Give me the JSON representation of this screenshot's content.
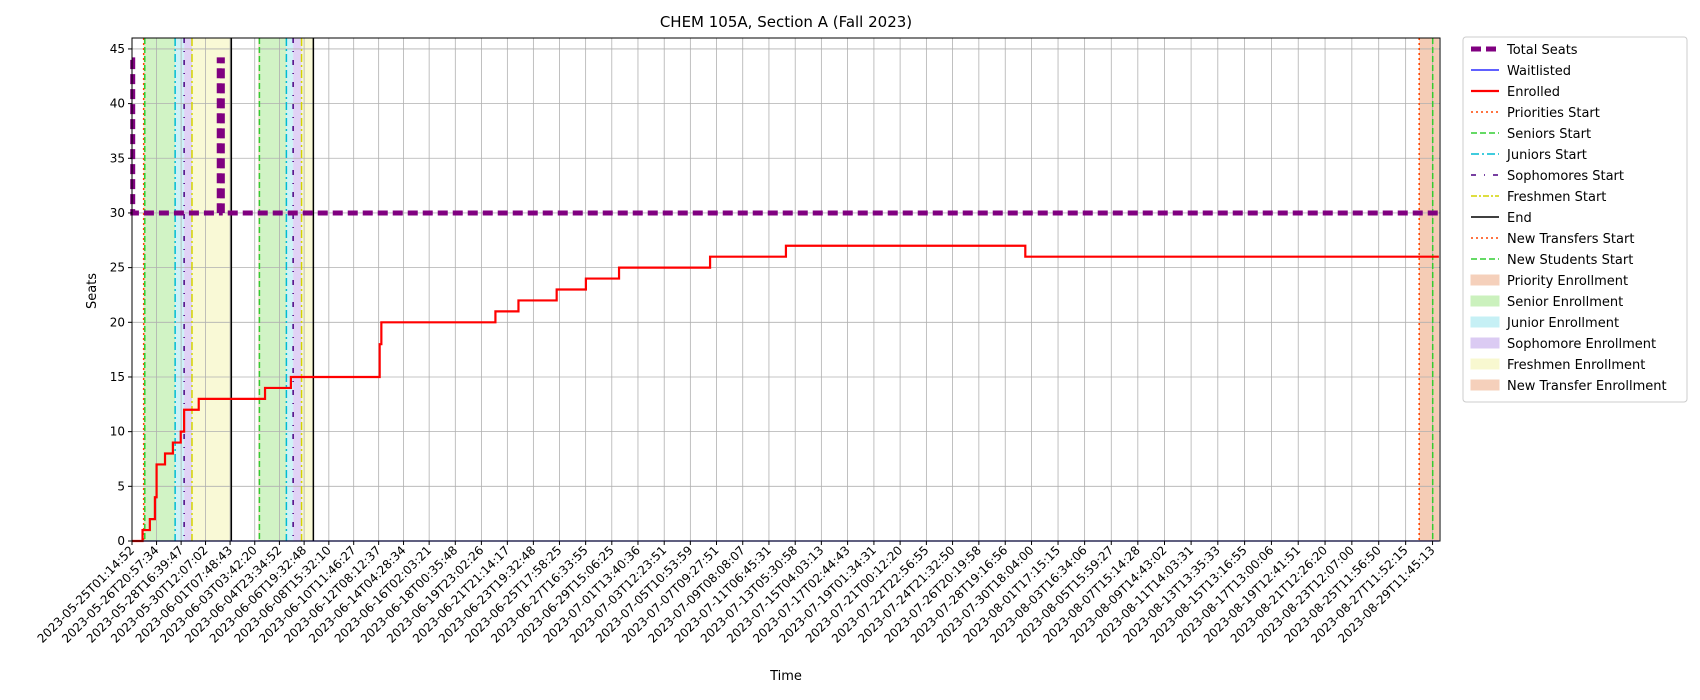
{
  "chart_data": {
    "type": "line",
    "title": "CHEM 105A, Section A (Fall 2023)",
    "xlabel": "Time",
    "ylabel": "Seats",
    "x_is_datetime": true,
    "xlim": [
      "2023-05-25T01:14:52",
      "2023-08-30T01:00:00"
    ],
    "ylim": [
      0,
      46
    ],
    "yticks": [
      0,
      5,
      10,
      15,
      20,
      25,
      30,
      35,
      40,
      45
    ],
    "xticks": [
      "2023-05-25T01:14:52",
      "2023-05-26T20:57:34",
      "2023-05-28T16:39:47",
      "2023-05-30T12:07:02",
      "2023-06-01T07:48:43",
      "2023-06-03T03:42:20",
      "2023-06-04T23:34:52",
      "2023-06-06T19:32:48",
      "2023-06-08T15:32:10",
      "2023-06-10T11:46:27",
      "2023-06-12T08:12:37",
      "2023-06-14T04:28:34",
      "2023-06-16T02:03:21",
      "2023-06-18T00:35:48",
      "2023-06-19T23:02:26",
      "2023-06-21T21:14:17",
      "2023-06-23T19:32:48",
      "2023-06-25T17:58:25",
      "2023-06-27T16:33:55",
      "2023-06-29T15:06:25",
      "2023-07-01T13:40:36",
      "2023-07-03T12:23:51",
      "2023-07-05T10:53:59",
      "2023-07-07T09:27:51",
      "2023-07-09T08:08:07",
      "2023-07-11T06:45:31",
      "2023-07-13T05:30:58",
      "2023-07-15T04:03:13",
      "2023-07-17T02:44:43",
      "2023-07-19T01:34:31",
      "2023-07-21T00:12:20",
      "2023-07-22T22:56:55",
      "2023-07-24T21:32:50",
      "2023-07-26T20:19:58",
      "2023-07-28T19:16:56",
      "2023-07-30T18:04:00",
      "2023-08-01T17:15:15",
      "2023-08-03T16:34:06",
      "2023-08-05T15:59:27",
      "2023-08-07T15:14:28",
      "2023-08-09T14:43:02",
      "2023-08-11T14:03:31",
      "2023-08-13T13:35:33",
      "2023-08-15T13:16:55",
      "2023-08-17T13:00:06",
      "2023-08-19T12:41:51",
      "2023-08-21T12:26:20",
      "2023-08-23T12:07:00",
      "2023-08-25T11:56:50",
      "2023-08-27T11:52:15",
      "2023-08-29T11:45:13"
    ],
    "grid": true,
    "legend_position": "outside-right",
    "series": [
      {
        "name": "Total Seats",
        "style": "dashed-thick",
        "color": "#800080",
        "points": [
          [
            "2023-05-25T01:14:52",
            44
          ],
          [
            "2023-05-25T02:30:00",
            44
          ],
          [
            "2023-05-25T02:30:00",
            30
          ],
          [
            "2023-05-31T12:30:00",
            30
          ],
          [
            "2023-05-31T12:30:00",
            44
          ],
          [
            "2023-05-31T18:00:00",
            44
          ],
          [
            "2023-05-31T18:00:00",
            30
          ],
          [
            "2023-08-29T23:00:00",
            30
          ]
        ]
      },
      {
        "name": "Waitlisted",
        "style": "solid",
        "color": "#0000ff",
        "points": [
          [
            "2023-05-25T01:14:52",
            0
          ],
          [
            "2023-08-29T23:00:00",
            0
          ]
        ]
      },
      {
        "name": "Enrolled",
        "style": "step",
        "color": "#ff0000",
        "points": [
          [
            "2023-05-25T01:14:52",
            0
          ],
          [
            "2023-05-25T20:00:00",
            1
          ],
          [
            "2023-05-26T09:00:00",
            2
          ],
          [
            "2023-05-26T18:00:00",
            4
          ],
          [
            "2023-05-26T21:00:00",
            7
          ],
          [
            "2023-05-27T04:00:00",
            7
          ],
          [
            "2023-05-27T12:00:00",
            8
          ],
          [
            "2023-05-28T02:00:00",
            9
          ],
          [
            "2023-05-28T16:00:00",
            10
          ],
          [
            "2023-05-28T22:00:00",
            12
          ],
          [
            "2023-05-29T12:00:00",
            12
          ],
          [
            "2023-05-30T00:00:00",
            13
          ],
          [
            "2023-06-03T22:00:00",
            14
          ],
          [
            "2023-06-05T20:00:00",
            15
          ],
          [
            "2023-06-12T10:00:00",
            18
          ],
          [
            "2023-06-12T13:00:00",
            20
          ],
          [
            "2023-06-21T00:00:00",
            21
          ],
          [
            "2023-06-22T17:00:00",
            22
          ],
          [
            "2023-06-25T13:00:00",
            23
          ],
          [
            "2023-06-27T17:00:00",
            24
          ],
          [
            "2023-06-30T04:00:00",
            25
          ],
          [
            "2023-07-06T22:00:00",
            26
          ],
          [
            "2023-07-12T13:00:00",
            27
          ],
          [
            "2023-07-30T07:00:00",
            26
          ],
          [
            "2023-08-29T23:00:00",
            26
          ]
        ]
      }
    ],
    "vertical_markers": [
      {
        "name": "Priorities Start",
        "color": "#ff4500",
        "style": "dotted",
        "x": [
          "2023-05-25T22:00:00",
          "2023-08-28T12:00:00"
        ]
      },
      {
        "name": "Seniors Start",
        "color": "#32cd32",
        "style": "dashed",
        "x": [
          "2023-05-26T00:00:00",
          "2023-06-03T12:00:00"
        ]
      },
      {
        "name": "Juniors Start",
        "color": "#00bcd4",
        "style": "dashdot",
        "x": [
          "2023-05-28T06:00:00",
          "2023-06-05T12:00:00"
        ]
      },
      {
        "name": "Sophomores Start",
        "color": "#4b0082",
        "style": "dashdot-sparse",
        "x": [
          "2023-05-28T22:00:00",
          "2023-06-06T00:00:00"
        ]
      },
      {
        "name": "Freshmen Start",
        "color": "#d4d400",
        "style": "dashdot",
        "x": [
          "2023-05-29T12:00:00",
          "2023-06-06T15:00:00"
        ]
      },
      {
        "name": "End",
        "color": "#000000",
        "style": "solid",
        "x": [
          "2023-06-01T10:00:00",
          "2023-06-07T12:00:00"
        ]
      },
      {
        "name": "New Transfers Start",
        "color": "#ff4500",
        "style": "dotted",
        "x": [
          "2023-08-28T12:00:00"
        ]
      },
      {
        "name": "New Students Start",
        "color": "#32cd32",
        "style": "dashed",
        "x": [
          "2023-08-29T12:00:00"
        ]
      }
    ],
    "shaded_regions": [
      {
        "name": "Priority Enrollment",
        "color": "#f4c8b0",
        "spans": [
          [
            "2023-05-25T22:00:00",
            "2023-05-26T00:00:00"
          ],
          [
            "2023-06-03T10:00:00",
            "2023-06-03T12:00:00"
          ],
          [
            "2023-08-28T12:00:00",
            "2023-08-29T23:00:00"
          ]
        ]
      },
      {
        "name": "Senior Enrollment",
        "color": "#c2efb2",
        "spans": [
          [
            "2023-05-26T00:00:00",
            "2023-05-28T06:00:00"
          ],
          [
            "2023-06-03T12:00:00",
            "2023-06-05T12:00:00"
          ]
        ]
      },
      {
        "name": "Junior Enrollment",
        "color": "#bdeef4",
        "spans": [
          [
            "2023-05-28T06:00:00",
            "2023-05-28T22:00:00"
          ],
          [
            "2023-06-05T12:00:00",
            "2023-06-06T00:00:00"
          ]
        ]
      },
      {
        "name": "Sophomore Enrollment",
        "color": "#d5c3f2",
        "spans": [
          [
            "2023-05-28T22:00:00",
            "2023-05-29T12:00:00"
          ],
          [
            "2023-06-06T00:00:00",
            "2023-06-06T15:00:00"
          ]
        ]
      },
      {
        "name": "Freshmen Enrollment",
        "color": "#f7f7c8",
        "spans": [
          [
            "2023-05-29T12:00:00",
            "2023-06-01T10:00:00"
          ],
          [
            "2023-06-06T15:00:00",
            "2023-06-07T12:00:00"
          ]
        ]
      },
      {
        "name": "New Transfer Enrollment",
        "color": "#f4c8b0",
        "spans": [
          [
            "2023-08-28T12:00:00",
            "2023-08-29T23:00:00"
          ]
        ]
      }
    ],
    "legend": [
      {
        "label": "Total Seats",
        "kind": "line",
        "color": "#800080",
        "dash": "10,5",
        "width": 5
      },
      {
        "label": "Waitlisted",
        "kind": "line",
        "color": "#0000ff",
        "dash": "",
        "width": 1.3
      },
      {
        "label": "Enrolled",
        "kind": "line",
        "color": "#ff0000",
        "dash": "",
        "width": 2.2
      },
      {
        "label": "Priorities Start",
        "kind": "line",
        "color": "#ff4500",
        "dash": "2,3",
        "width": 1.5
      },
      {
        "label": "Seniors Start",
        "kind": "line",
        "color": "#32cd32",
        "dash": "6,3",
        "width": 1.5
      },
      {
        "label": "Juniors Start",
        "kind": "line",
        "color": "#00bcd4",
        "dash": "8,3,2,3",
        "width": 1.5
      },
      {
        "label": "Sophomores Start",
        "kind": "line",
        "color": "#4b0082",
        "dash": "5,8,1,8",
        "width": 1.5
      },
      {
        "label": "Freshmen Start",
        "kind": "line",
        "color": "#d4d400",
        "dash": "6,2,2,2",
        "width": 1.5
      },
      {
        "label": "End",
        "kind": "line",
        "color": "#000000",
        "dash": "",
        "width": 1.5
      },
      {
        "label": "New Transfers Start",
        "kind": "line",
        "color": "#ff4500",
        "dash": "2,3",
        "width": 1.5
      },
      {
        "label": "New Students Start",
        "kind": "line",
        "color": "#32cd32",
        "dash": "6,3",
        "width": 1.5
      },
      {
        "label": "Priority Enrollment",
        "kind": "patch",
        "color": "#f4c8b0"
      },
      {
        "label": "Senior Enrollment",
        "kind": "patch",
        "color": "#c2efb2"
      },
      {
        "label": "Junior Enrollment",
        "kind": "patch",
        "color": "#bdeef4"
      },
      {
        "label": "Sophomore Enrollment",
        "kind": "patch",
        "color": "#d5c3f2"
      },
      {
        "label": "Freshmen Enrollment",
        "kind": "patch",
        "color": "#f7f7c8"
      },
      {
        "label": "New Transfer Enrollment",
        "kind": "patch",
        "color": "#f4c8b0"
      }
    ]
  }
}
